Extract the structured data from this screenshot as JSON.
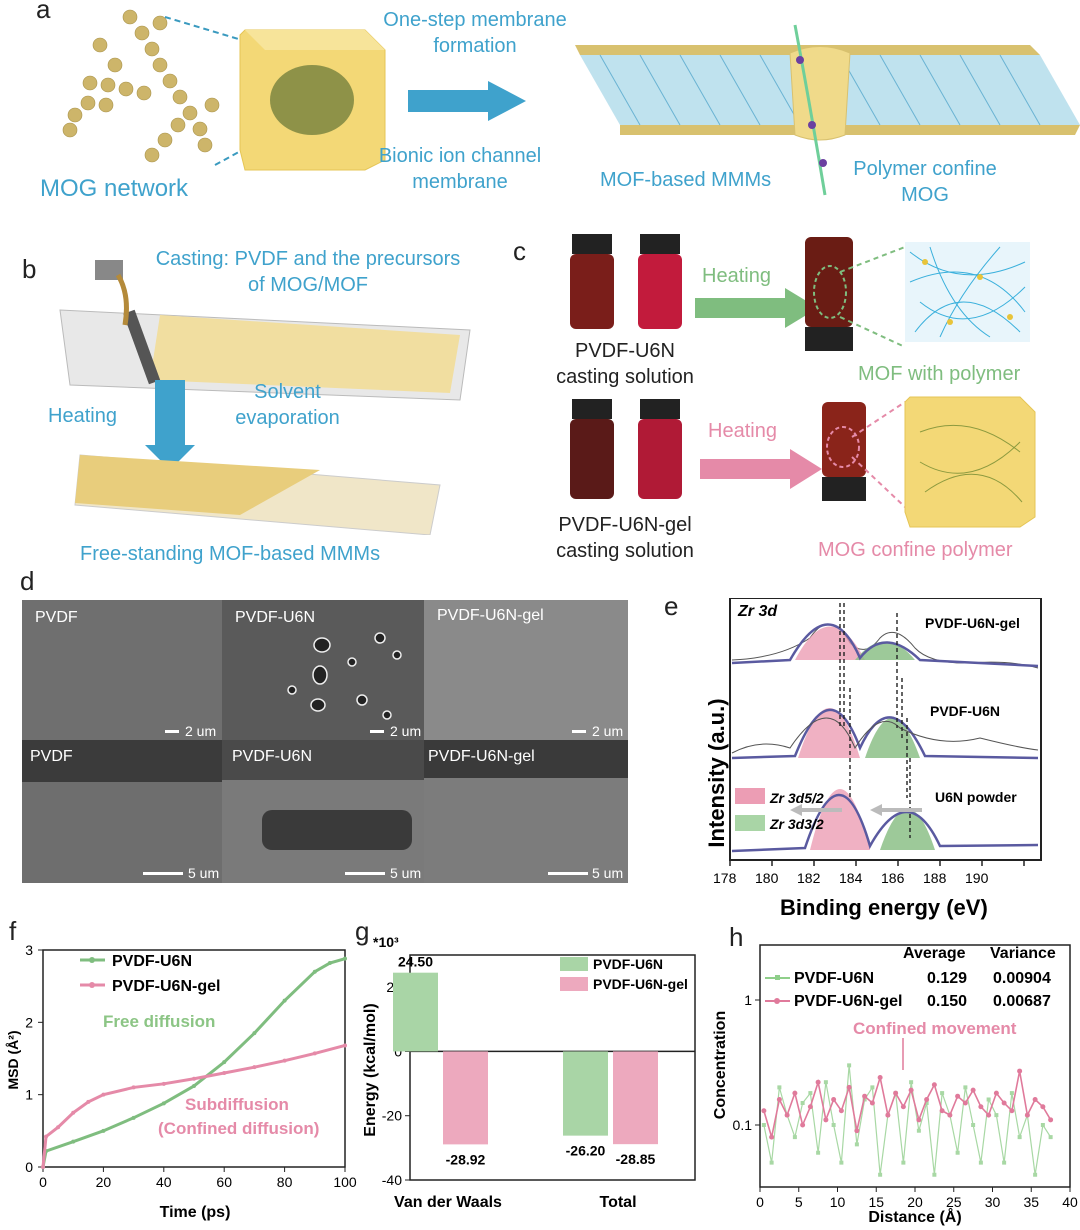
{
  "panel_a": {
    "label": "a",
    "mog_network": "MOG network",
    "one_step": [
      "One-step membrane",
      "formation"
    ],
    "bionic": [
      "Bionic ion channel",
      "membrane"
    ],
    "mof_mmms": "MOF-based MMMs",
    "polymer_confine": [
      "Polymer confine",
      "MOG"
    ]
  },
  "panel_b": {
    "label": "b",
    "casting": [
      "Casting: PVDF and the precursors",
      "of MOG/MOF"
    ],
    "heating": "Heating",
    "solvent": [
      "Solvent",
      "evaporation"
    ],
    "freestanding": "Free-standing MOF-based MMMs"
  },
  "panel_c": {
    "label": "c",
    "sol1": [
      "PVDF-U6N",
      "casting solution"
    ],
    "sol2": [
      "PVDF-U6N-gel",
      "casting solution"
    ],
    "heating1": "Heating",
    "heating2": "Heating",
    "mof_poly": "MOF with polymer",
    "mog_confine": "MOG confine polymer"
  },
  "panel_d": {
    "label": "d",
    "top": [
      "PVDF",
      "PVDF-U6N",
      "PVDF-U6N-gel"
    ],
    "bottom": [
      "PVDF",
      "PVDF-U6N",
      "PVDF-U6N-gel"
    ],
    "scale_top": "2 um",
    "scale_bottom": "5 um"
  },
  "panel_e": {
    "label": "e",
    "title": "Zr 3d",
    "ylabel": "Intensity (a.u.)",
    "xlabel": "Binding energy (eV)",
    "traces": [
      "PVDF-U6N-gel",
      "PVDF-U6N",
      "U6N powder"
    ],
    "legend": [
      "Zr 3d5/2",
      "Zr 3d3/2"
    ],
    "ticks": [
      "178",
      "180",
      "182",
      "184",
      "186",
      "188",
      "190"
    ]
  },
  "chart_data": [
    {
      "type": "line",
      "panel": "f",
      "xlabel": "Time (ps)",
      "ylabel": "MSD (Å²)",
      "xlim": [
        0,
        100
      ],
      "ylim": [
        0,
        3
      ],
      "series": [
        {
          "name": "PVDF-U6N",
          "color": "#7fbd7f",
          "x": [
            0,
            1,
            10,
            20,
            30,
            40,
            50,
            60,
            70,
            80,
            90,
            95,
            100
          ],
          "y": [
            0,
            0.22,
            0.35,
            0.5,
            0.68,
            0.88,
            1.12,
            1.45,
            1.85,
            2.3,
            2.7,
            2.82,
            2.88
          ]
        },
        {
          "name": "PVDF-U6N-gel",
          "color": "#e58aa8",
          "x": [
            0,
            1,
            5,
            10,
            15,
            20,
            30,
            40,
            50,
            60,
            70,
            80,
            90,
            100
          ],
          "y": [
            0,
            0.42,
            0.55,
            0.75,
            0.9,
            1.0,
            1.1,
            1.15,
            1.22,
            1.3,
            1.38,
            1.47,
            1.57,
            1.68
          ]
        }
      ],
      "annotations": [
        "Free diffusion",
        "Subdiffusion",
        "(Confined diffusion)"
      ],
      "xticks": [
        0,
        20,
        40,
        60,
        80,
        100
      ],
      "yticks": [
        0,
        1,
        2,
        3
      ]
    },
    {
      "type": "bar",
      "panel": "g",
      "ylabel": "Energy (kcal/mol)",
      "multiplier": "*10³",
      "categories": [
        "Van der Waals",
        "Total"
      ],
      "ylim": [
        -40,
        30
      ],
      "series": [
        {
          "name": "PVDF-U6N",
          "color": "#a9d5a6",
          "values": [
            24.5,
            -26.2
          ]
        },
        {
          "name": "PVDF-U6N-gel",
          "color": "#eda9be",
          "values": [
            -28.92,
            -28.85
          ]
        }
      ],
      "data_labels": [
        "24.50",
        "-28.92",
        "-26.20",
        "-28.85"
      ],
      "yticks": [
        -40,
        -20,
        0,
        20
      ]
    },
    {
      "type": "line",
      "panel": "h",
      "xlabel": "Distance (Å)",
      "ylabel": "Concentration",
      "xlim": [
        0,
        40
      ],
      "yscale": "log",
      "table_header": [
        "Average",
        "Variance"
      ],
      "series": [
        {
          "name": "PVDF-U6N",
          "average": "0.129",
          "variance": "0.00904",
          "color": "#8fcf8a"
        },
        {
          "name": "PVDF-U6N-gel",
          "average": "0.150",
          "variance": "0.00687",
          "color": "#e07a9b"
        }
      ],
      "annotation": "Confined movement",
      "xticks": [
        0,
        5,
        10,
        15,
        20,
        25,
        30,
        35,
        40
      ],
      "yticks": [
        "1",
        "0.1"
      ]
    }
  ],
  "panel_labels": {
    "f": "f",
    "g": "g",
    "h": "h"
  }
}
